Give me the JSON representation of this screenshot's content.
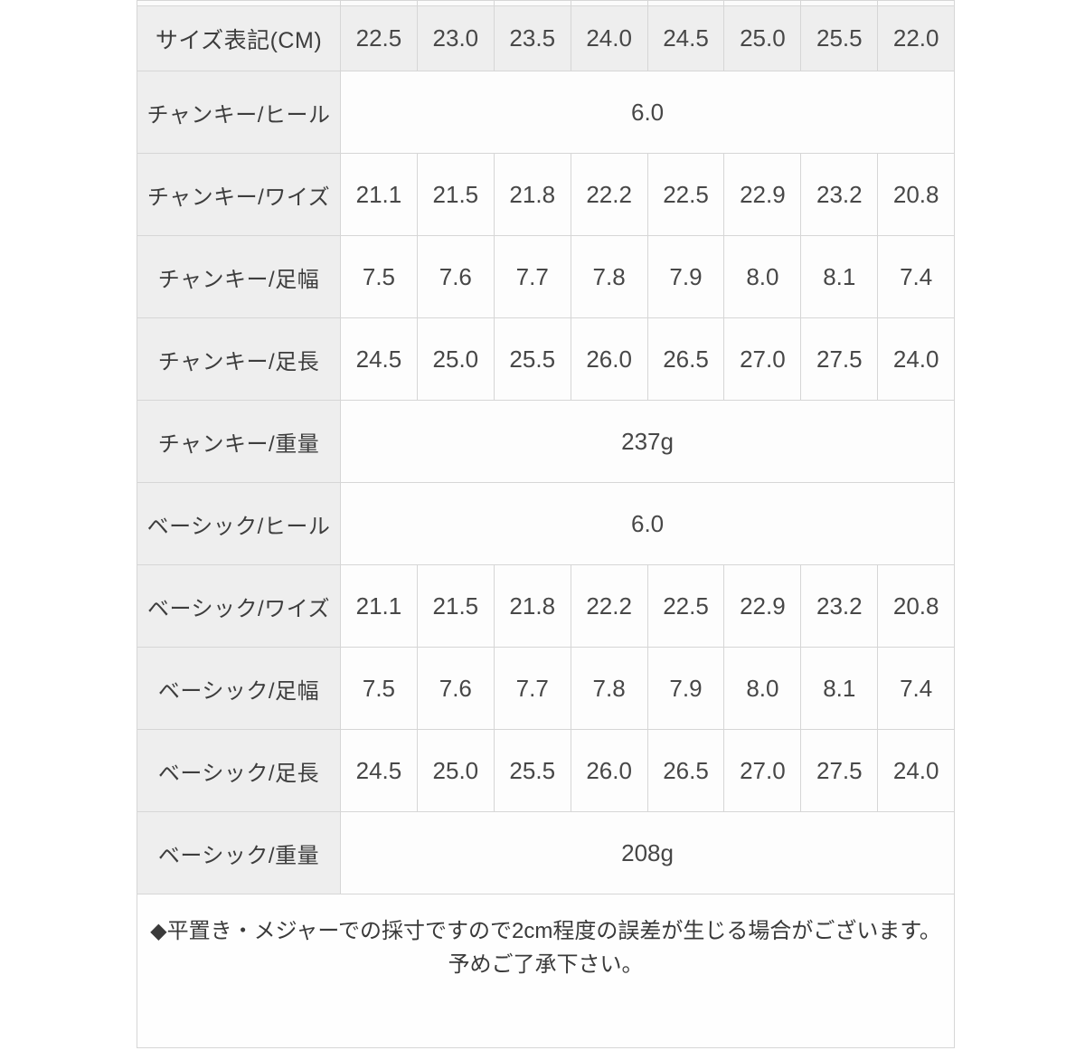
{
  "colors": {
    "header_bg": "#eeeeee",
    "cell_bg": "#fdfdfd",
    "border": "#d6d6d6",
    "text": "#474747"
  },
  "table": {
    "header": {
      "label": "サイズ表記(CM)",
      "values": [
        "22.5",
        "23.0",
        "23.5",
        "24.0",
        "24.5",
        "25.0",
        "25.5",
        "22.0"
      ]
    },
    "rows": [
      {
        "label": "チャンキー/ヒール",
        "value": "6.0"
      },
      {
        "label": "チャンキー/ワイズ",
        "values": [
          "21.1",
          "21.5",
          "21.8",
          "22.2",
          "22.5",
          "22.9",
          "23.2",
          "20.8"
        ]
      },
      {
        "label": "チャンキー/足幅",
        "values": [
          "7.5",
          "7.6",
          "7.7",
          "7.8",
          "7.9",
          "8.0",
          "8.1",
          "7.4"
        ]
      },
      {
        "label": "チャンキー/足長",
        "values": [
          "24.5",
          "25.0",
          "25.5",
          "26.0",
          "26.5",
          "27.0",
          "27.5",
          "24.0"
        ]
      },
      {
        "label": "チャンキー/重量",
        "value": "237g"
      },
      {
        "label": "ベーシック/ヒール",
        "value": "6.0"
      },
      {
        "label": "ベーシック/ワイズ",
        "values": [
          "21.1",
          "21.5",
          "21.8",
          "22.2",
          "22.5",
          "22.9",
          "23.2",
          "20.8"
        ]
      },
      {
        "label": "ベーシック/足幅",
        "values": [
          "7.5",
          "7.6",
          "7.7",
          "7.8",
          "7.9",
          "8.0",
          "8.1",
          "7.4"
        ]
      },
      {
        "label": "ベーシック/足長",
        "values": [
          "24.5",
          "25.0",
          "25.5",
          "26.0",
          "26.5",
          "27.0",
          "27.5",
          "24.0"
        ]
      },
      {
        "label": "ベーシック/重量",
        "value": "208g"
      }
    ],
    "note_line1": "◆平置き・メジャーでの採寸ですので2cm程度の誤差が生じる場合がございます。",
    "note_line2": "予めご了承下さい。"
  }
}
